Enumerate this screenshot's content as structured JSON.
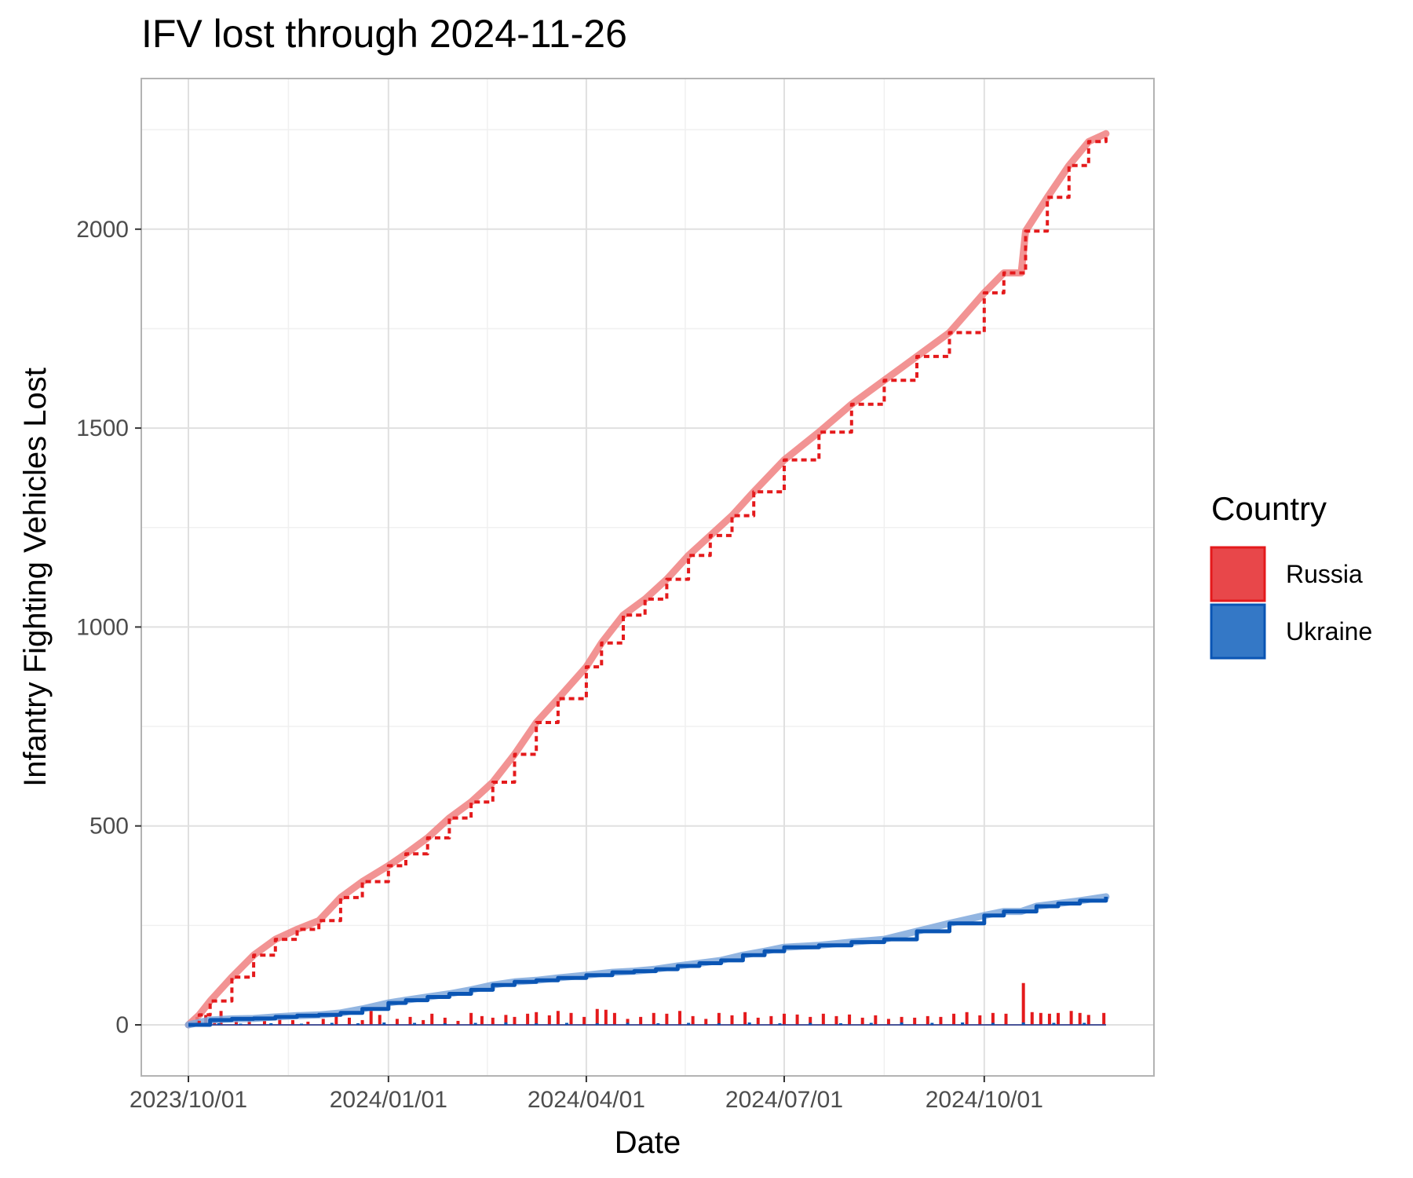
{
  "chart_data": {
    "type": "line",
    "title": "IFV lost through 2024-11-26",
    "xlabel": "Date",
    "ylabel": "Infantry Fighting Vehicles Lost",
    "x_range": [
      "2023-10-01",
      "2024-11-26"
    ],
    "ylim": [
      -120,
      2390
    ],
    "x_ticks": [
      {
        "label": "2023/10/01",
        "day": 0
      },
      {
        "label": "2024/01/01",
        "day": 92
      },
      {
        "label": "2024/04/01",
        "day": 183
      },
      {
        "label": "2024/07/01",
        "day": 274
      },
      {
        "label": "2024/10/01",
        "day": 366
      }
    ],
    "y_ticks": [
      0,
      500,
      1000,
      1500,
      2000
    ],
    "grid": true,
    "legend": {
      "title": "Country",
      "position": "right",
      "entries": [
        "Russia",
        "Ukraine"
      ]
    },
    "series": [
      {
        "name": "Russia",
        "color": "#e41a1c",
        "fill": "#e8474a",
        "smooth_color": "#f08080",
        "cumulative": [
          {
            "day": 0,
            "value": 0
          },
          {
            "day": 5,
            "value": 25
          },
          {
            "day": 10,
            "value": 60
          },
          {
            "day": 20,
            "value": 120
          },
          {
            "day": 30,
            "value": 175
          },
          {
            "day": 40,
            "value": 215
          },
          {
            "day": 50,
            "value": 240
          },
          {
            "day": 60,
            "value": 262
          },
          {
            "day": 70,
            "value": 320
          },
          {
            "day": 80,
            "value": 360
          },
          {
            "day": 92,
            "value": 400
          },
          {
            "day": 100,
            "value": 430
          },
          {
            "day": 110,
            "value": 470
          },
          {
            "day": 120,
            "value": 520
          },
          {
            "day": 130,
            "value": 560
          },
          {
            "day": 140,
            "value": 610
          },
          {
            "day": 150,
            "value": 680
          },
          {
            "day": 160,
            "value": 760
          },
          {
            "day": 170,
            "value": 820
          },
          {
            "day": 183,
            "value": 900
          },
          {
            "day": 190,
            "value": 960
          },
          {
            "day": 200,
            "value": 1030
          },
          {
            "day": 210,
            "value": 1070
          },
          {
            "day": 220,
            "value": 1120
          },
          {
            "day": 230,
            "value": 1180
          },
          {
            "day": 240,
            "value": 1230
          },
          {
            "day": 250,
            "value": 1280
          },
          {
            "day": 260,
            "value": 1340
          },
          {
            "day": 274,
            "value": 1420
          },
          {
            "day": 290,
            "value": 1490
          },
          {
            "day": 305,
            "value": 1560
          },
          {
            "day": 320,
            "value": 1620
          },
          {
            "day": 335,
            "value": 1680
          },
          {
            "day": 350,
            "value": 1740
          },
          {
            "day": 366,
            "value": 1840
          },
          {
            "day": 375,
            "value": 1890
          },
          {
            "day": 383,
            "value": 1890
          },
          {
            "day": 385,
            "value": 1995
          },
          {
            "day": 395,
            "value": 2080
          },
          {
            "day": 405,
            "value": 2160
          },
          {
            "day": 414,
            "value": 2220
          },
          {
            "day": 422,
            "value": 2240
          }
        ],
        "daily": [
          {
            "day": 4,
            "value": 20
          },
          {
            "day": 8,
            "value": 25
          },
          {
            "day": 12,
            "value": 10
          },
          {
            "day": 15,
            "value": 35
          },
          {
            "day": 22,
            "value": 15
          },
          {
            "day": 28,
            "value": 20
          },
          {
            "day": 35,
            "value": 10
          },
          {
            "day": 42,
            "value": 18
          },
          {
            "day": 48,
            "value": 12
          },
          {
            "day": 55,
            "value": 8
          },
          {
            "day": 62,
            "value": 15
          },
          {
            "day": 68,
            "value": 22
          },
          {
            "day": 74,
            "value": 18
          },
          {
            "day": 80,
            "value": 12
          },
          {
            "day": 84,
            "value": 35
          },
          {
            "day": 88,
            "value": 25
          },
          {
            "day": 96,
            "value": 15
          },
          {
            "day": 102,
            "value": 20
          },
          {
            "day": 108,
            "value": 12
          },
          {
            "day": 112,
            "value": 28
          },
          {
            "day": 118,
            "value": 18
          },
          {
            "day": 124,
            "value": 10
          },
          {
            "day": 130,
            "value": 30
          },
          {
            "day": 135,
            "value": 22
          },
          {
            "day": 140,
            "value": 18
          },
          {
            "day": 146,
            "value": 25
          },
          {
            "day": 150,
            "value": 20
          },
          {
            "day": 156,
            "value": 28
          },
          {
            "day": 160,
            "value": 32
          },
          {
            "day": 166,
            "value": 24
          },
          {
            "day": 170,
            "value": 35
          },
          {
            "day": 176,
            "value": 30
          },
          {
            "day": 182,
            "value": 20
          },
          {
            "day": 188,
            "value": 40
          },
          {
            "day": 192,
            "value": 38
          },
          {
            "day": 196,
            "value": 30
          },
          {
            "day": 202,
            "value": 15
          },
          {
            "day": 208,
            "value": 20
          },
          {
            "day": 214,
            "value": 30
          },
          {
            "day": 220,
            "value": 28
          },
          {
            "day": 226,
            "value": 35
          },
          {
            "day": 232,
            "value": 22
          },
          {
            "day": 238,
            "value": 15
          },
          {
            "day": 244,
            "value": 30
          },
          {
            "day": 250,
            "value": 24
          },
          {
            "day": 256,
            "value": 32
          },
          {
            "day": 262,
            "value": 18
          },
          {
            "day": 268,
            "value": 22
          },
          {
            "day": 274,
            "value": 28
          },
          {
            "day": 280,
            "value": 26
          },
          {
            "day": 286,
            "value": 20
          },
          {
            "day": 292,
            "value": 28
          },
          {
            "day": 298,
            "value": 22
          },
          {
            "day": 304,
            "value": 26
          },
          {
            "day": 310,
            "value": 18
          },
          {
            "day": 316,
            "value": 24
          },
          {
            "day": 322,
            "value": 15
          },
          {
            "day": 328,
            "value": 20
          },
          {
            "day": 334,
            "value": 18
          },
          {
            "day": 340,
            "value": 22
          },
          {
            "day": 346,
            "value": 20
          },
          {
            "day": 352,
            "value": 28
          },
          {
            "day": 358,
            "value": 32
          },
          {
            "day": 364,
            "value": 24
          },
          {
            "day": 370,
            "value": 30
          },
          {
            "day": 376,
            "value": 28
          },
          {
            "day": 384,
            "value": 105
          },
          {
            "day": 388,
            "value": 32
          },
          {
            "day": 392,
            "value": 30
          },
          {
            "day": 396,
            "value": 28
          },
          {
            "day": 400,
            "value": 30
          },
          {
            "day": 406,
            "value": 35
          },
          {
            "day": 410,
            "value": 30
          },
          {
            "day": 414,
            "value": 25
          },
          {
            "day": 421,
            "value": 30
          }
        ]
      },
      {
        "name": "Ukraine",
        "color": "#0a55b4",
        "fill": "#3478c6",
        "smooth_color": "#7fa8dc",
        "cumulative": [
          {
            "day": 0,
            "value": 0
          },
          {
            "day": 10,
            "value": 12
          },
          {
            "day": 20,
            "value": 15
          },
          {
            "day": 30,
            "value": 16
          },
          {
            "day": 40,
            "value": 20
          },
          {
            "day": 50,
            "value": 23
          },
          {
            "day": 60,
            "value": 25
          },
          {
            "day": 70,
            "value": 30
          },
          {
            "day": 80,
            "value": 40
          },
          {
            "day": 92,
            "value": 55
          },
          {
            "day": 100,
            "value": 62
          },
          {
            "day": 110,
            "value": 70
          },
          {
            "day": 120,
            "value": 78
          },
          {
            "day": 130,
            "value": 88
          },
          {
            "day": 140,
            "value": 100
          },
          {
            "day": 150,
            "value": 108
          },
          {
            "day": 160,
            "value": 112
          },
          {
            "day": 170,
            "value": 118
          },
          {
            "day": 183,
            "value": 125
          },
          {
            "day": 195,
            "value": 132
          },
          {
            "day": 205,
            "value": 135
          },
          {
            "day": 215,
            "value": 140
          },
          {
            "day": 225,
            "value": 148
          },
          {
            "day": 235,
            "value": 155
          },
          {
            "day": 245,
            "value": 162
          },
          {
            "day": 255,
            "value": 175
          },
          {
            "day": 265,
            "value": 185
          },
          {
            "day": 274,
            "value": 195
          },
          {
            "day": 290,
            "value": 200
          },
          {
            "day": 305,
            "value": 208
          },
          {
            "day": 320,
            "value": 215
          },
          {
            "day": 335,
            "value": 235
          },
          {
            "day": 350,
            "value": 255
          },
          {
            "day": 366,
            "value": 275
          },
          {
            "day": 375,
            "value": 285
          },
          {
            "day": 383,
            "value": 285
          },
          {
            "day": 390,
            "value": 298
          },
          {
            "day": 400,
            "value": 305
          },
          {
            "day": 410,
            "value": 312
          },
          {
            "day": 422,
            "value": 322
          }
        ],
        "daily": [
          {
            "day": 6,
            "value": 5
          },
          {
            "day": 14,
            "value": 4
          },
          {
            "day": 24,
            "value": 3
          },
          {
            "day": 38,
            "value": 4
          },
          {
            "day": 52,
            "value": 3
          },
          {
            "day": 66,
            "value": 5
          },
          {
            "day": 78,
            "value": 4
          },
          {
            "day": 90,
            "value": 6
          },
          {
            "day": 104,
            "value": 5
          },
          {
            "day": 118,
            "value": 4
          },
          {
            "day": 132,
            "value": 5
          },
          {
            "day": 146,
            "value": 6
          },
          {
            "day": 160,
            "value": 4
          },
          {
            "day": 174,
            "value": 5
          },
          {
            "day": 188,
            "value": 4
          },
          {
            "day": 202,
            "value": 5
          },
          {
            "day": 216,
            "value": 4
          },
          {
            "day": 230,
            "value": 5
          },
          {
            "day": 244,
            "value": 4
          },
          {
            "day": 258,
            "value": 6
          },
          {
            "day": 272,
            "value": 4
          },
          {
            "day": 286,
            "value": 5
          },
          {
            "day": 300,
            "value": 4
          },
          {
            "day": 314,
            "value": 5
          },
          {
            "day": 328,
            "value": 6
          },
          {
            "day": 342,
            "value": 5
          },
          {
            "day": 356,
            "value": 6
          },
          {
            "day": 370,
            "value": 5
          },
          {
            "day": 384,
            "value": 6
          },
          {
            "day": 398,
            "value": 5
          },
          {
            "day": 412,
            "value": 5
          }
        ]
      }
    ]
  }
}
